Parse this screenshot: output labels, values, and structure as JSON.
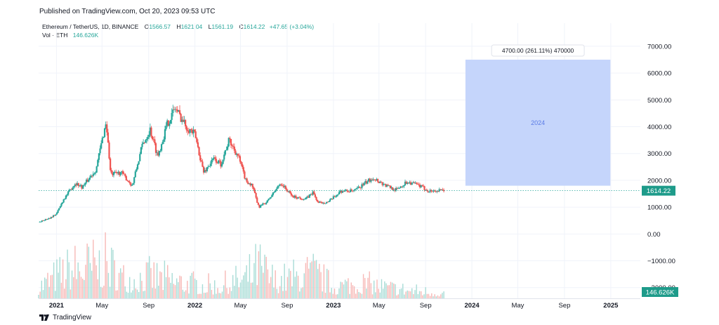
{
  "header": {
    "published": "Published on TradingView.com, Oct 20, 2023 09:53 UTC"
  },
  "legend": {
    "symbol": "Ethereum / TetherUS, 1D, BINANCE",
    "open_label": "O",
    "open": "1566.57",
    "high_label": "H",
    "high": "1621.04",
    "low_label": "L",
    "low": "1561.19",
    "close_label": "C",
    "close": "1614.22",
    "change": "+47.65 (+3.04%)",
    "vol_label": "Vol · ETH",
    "vol_value": "146.626K"
  },
  "footer": {
    "brand": "TradingView"
  },
  "colors": {
    "up": "#26a69a",
    "down": "#ef5350",
    "vol_up": "#a8dcd6",
    "vol_down": "#f7b8b6",
    "projection_fill": "#c5d5fb",
    "projection_text": "#5b7ce6",
    "price_line": "#26a69a",
    "price_badge": "#1e9b8a"
  },
  "chart_data": {
    "type": "candlestick",
    "y_ticks": [
      7000,
      6000,
      5000,
      4000,
      3000,
      2000,
      1000,
      0,
      -1000,
      -2000
    ],
    "y_tick_labels": [
      "7000.00",
      "6000.00",
      "5000.00",
      "4000.00",
      "3000.00",
      "2000.00",
      "1000.00",
      "0.00",
      "−1000.00",
      "−2000.00"
    ],
    "ylim": [
      -2400,
      7600
    ],
    "x_ticks": [
      {
        "label": "2021",
        "date": "2021-01-01",
        "bold": true
      },
      {
        "label": "May",
        "date": "2021-05-01"
      },
      {
        "label": "Sep",
        "date": "2021-09-01"
      },
      {
        "label": "2022",
        "date": "2022-01-01",
        "bold": true
      },
      {
        "label": "May",
        "date": "2022-05-01"
      },
      {
        "label": "Sep",
        "date": "2022-09-01"
      },
      {
        "label": "2023",
        "date": "2023-01-01",
        "bold": true
      },
      {
        "label": "May",
        "date": "2023-05-01"
      },
      {
        "label": "Sep",
        "date": "2023-09-01"
      },
      {
        "label": "2024",
        "date": "2024-01-01",
        "bold": true
      },
      {
        "label": "May",
        "date": "2024-05-01"
      },
      {
        "label": "Sep",
        "date": "2024-09-01"
      },
      {
        "label": "2025",
        "date": "2025-01-01",
        "bold": true
      }
    ],
    "xlim": [
      "2020-11-15",
      "2025-03-20"
    ],
    "last_price": 1614.22,
    "last_price_label": "1614.22",
    "volume_label": "146.626K",
    "price_path": [
      [
        "2020-11-15",
        440
      ],
      [
        "2020-12-15",
        600
      ],
      [
        "2021-01-01",
        750
      ],
      [
        "2021-01-20",
        1300
      ],
      [
        "2021-02-20",
        1900
      ],
      [
        "2021-03-10",
        1750
      ],
      [
        "2021-04-15",
        2400
      ],
      [
        "2021-05-12",
        4200
      ],
      [
        "2021-05-24",
        2200
      ],
      [
        "2021-06-20",
        2300
      ],
      [
        "2021-07-20",
        1800
      ],
      [
        "2021-08-15",
        3300
      ],
      [
        "2021-09-05",
        3900
      ],
      [
        "2021-09-25",
        2900
      ],
      [
        "2021-10-20",
        4100
      ],
      [
        "2021-11-10",
        4700
      ],
      [
        "2021-12-10",
        4000
      ],
      [
        "2022-01-01",
        3700
      ],
      [
        "2022-01-24",
        2300
      ],
      [
        "2022-02-20",
        2800
      ],
      [
        "2022-03-10",
        2600
      ],
      [
        "2022-04-01",
        3500
      ],
      [
        "2022-04-25",
        2900
      ],
      [
        "2022-05-15",
        2000
      ],
      [
        "2022-06-01",
        1800
      ],
      [
        "2022-06-18",
        1000
      ],
      [
        "2022-07-10",
        1200
      ],
      [
        "2022-08-15",
        1900
      ],
      [
        "2022-09-15",
        1400
      ],
      [
        "2022-10-20",
        1300
      ],
      [
        "2022-11-08",
        1550
      ],
      [
        "2022-11-22",
        1150
      ],
      [
        "2022-12-20",
        1200
      ],
      [
        "2023-01-20",
        1600
      ],
      [
        "2023-02-25",
        1600
      ],
      [
        "2023-04-15",
        2100
      ],
      [
        "2023-05-20",
        1800
      ],
      [
        "2023-06-15",
        1650
      ],
      [
        "2023-07-15",
        1950
      ],
      [
        "2023-08-15",
        1800
      ],
      [
        "2023-09-10",
        1600
      ],
      [
        "2023-10-20",
        1614
      ]
    ],
    "volume_path": [
      [
        "2020-11-15",
        0.35
      ],
      [
        "2021-01-10",
        0.7
      ],
      [
        "2021-02-20",
        0.9
      ],
      [
        "2021-05-15",
        1.0
      ],
      [
        "2021-07-01",
        0.55
      ],
      [
        "2021-09-10",
        0.65
      ],
      [
        "2021-12-10",
        0.45
      ],
      [
        "2022-03-01",
        0.35
      ],
      [
        "2022-05-15",
        0.6
      ],
      [
        "2022-06-18",
        0.95
      ],
      [
        "2022-08-01",
        0.5
      ],
      [
        "2022-11-10",
        0.75
      ],
      [
        "2023-01-01",
        0.35
      ],
      [
        "2023-03-15",
        0.45
      ],
      [
        "2023-06-01",
        0.3
      ],
      [
        "2023-09-01",
        0.2
      ],
      [
        "2023-10-20",
        0.15
      ]
    ],
    "projection": {
      "x_start": "2023-12-15",
      "x_end": "2024-12-31",
      "y_bottom": 1800,
      "y_top": 6500,
      "label": "2024",
      "tooltip": "4700.00 (261.11%) 470000"
    }
  }
}
